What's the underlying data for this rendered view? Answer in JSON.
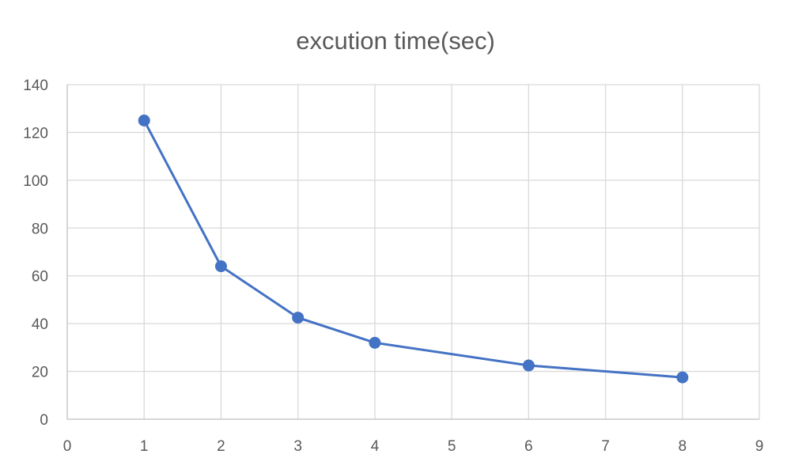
{
  "chart_data": {
    "type": "scatter",
    "title": "excution time(sec)",
    "xlabel": "",
    "ylabel": "",
    "xlim": [
      0,
      9
    ],
    "ylim": [
      0,
      140
    ],
    "x_ticks": [
      0,
      1,
      2,
      3,
      4,
      5,
      6,
      7,
      8,
      9
    ],
    "y_ticks": [
      0,
      20,
      40,
      60,
      80,
      100,
      120,
      140
    ],
    "grid": true,
    "legend": "none",
    "series": [
      {
        "color": "#4472c4",
        "x": [
          1,
          2,
          3,
          4,
          6,
          8
        ],
        "y": [
          125,
          64,
          42.5,
          32,
          22.5,
          17.5
        ]
      }
    ]
  }
}
